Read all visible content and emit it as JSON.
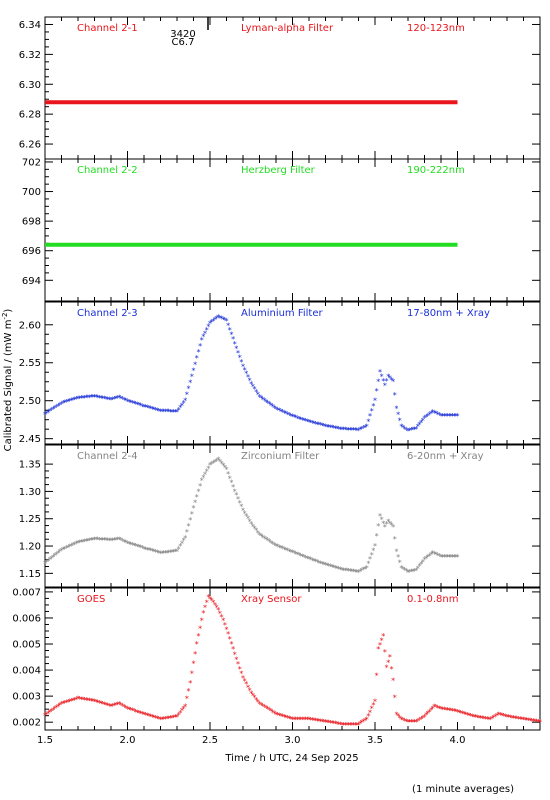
{
  "figure": {
    "ylabel_html": "Calibrated Signal / (mW m",
    "ylabel_sup": "-2",
    "ylabel_close": ")",
    "xlabel": "Time / h UTC, 24 Sep 2025",
    "footnote": "(1 minute averages)",
    "x_ticks": [
      "1.5",
      "2.0",
      "2.5",
      "3.0",
      "3.5",
      "4.0"
    ],
    "marker_annotation": [
      "3420",
      "C6.7"
    ]
  },
  "chart_data": [
    {
      "type": "scatter",
      "channel": "Channel 2-1",
      "filter": "Lyman-alpha Filter",
      "band": "120-123nm",
      "color": "#e8161c",
      "ylim": [
        6.25,
        6.345
      ],
      "yticks": [
        "6.26",
        "6.28",
        "6.30",
        "6.32",
        "6.34"
      ],
      "x_range": [
        1.5,
        4.0
      ],
      "series": [
        {
          "x": [
            1.5,
            4.0
          ],
          "y": [
            6.288,
            6.288
          ],
          "kind": "constant"
        }
      ]
    },
    {
      "type": "scatter",
      "channel": "Channel 2-2",
      "filter": "Herzberg Filter",
      "band": "190-222nm",
      "color": "#22dd22",
      "ylim": [
        692.6,
        702.2
      ],
      "yticks": [
        "694",
        "696",
        "698",
        "700",
        "702"
      ],
      "series": [
        {
          "x": [
            1.5,
            4.0
          ],
          "y": [
            696.4,
            696.4
          ],
          "kind": "constant"
        }
      ]
    },
    {
      "type": "scatter",
      "channel": "Channel 2-3",
      "filter": "Aluminium Filter",
      "band": "17-80nm + Xray",
      "color": "#1a2fd6",
      "ylim": [
        2.443,
        2.63
      ],
      "yticks": [
        "2.45",
        "2.50",
        "2.55",
        "2.60"
      ],
      "series": [
        {
          "x": [
            1.5,
            1.6,
            1.7,
            1.8,
            1.9,
            1.95,
            2.0,
            2.1,
            2.2,
            2.3,
            2.35,
            2.4,
            2.45,
            2.5,
            2.55,
            2.6,
            2.65,
            2.7,
            2.75,
            2.8,
            2.9,
            3.0,
            3.1,
            3.2,
            3.3,
            3.4,
            3.45,
            3.5,
            3.53,
            3.56,
            3.58,
            3.61,
            3.63,
            3.66,
            3.7,
            3.75,
            3.8,
            3.85,
            3.9,
            4.0
          ],
          "y": [
            2.482,
            2.496,
            2.503,
            2.505,
            2.501,
            2.504,
            2.499,
            2.492,
            2.486,
            2.485,
            2.5,
            2.54,
            2.58,
            2.602,
            2.61,
            2.605,
            2.575,
            2.545,
            2.522,
            2.505,
            2.489,
            2.479,
            2.472,
            2.466,
            2.462,
            2.461,
            2.466,
            2.5,
            2.538,
            2.52,
            2.532,
            2.525,
            2.49,
            2.466,
            2.46,
            2.463,
            2.477,
            2.485,
            2.48,
            2.48
          ]
        }
      ]
    },
    {
      "type": "scatter",
      "channel": "Channel 2-4",
      "filter": "Zirconium Filter",
      "band": "6-20nm + Xray",
      "color": "#848484",
      "ylim": [
        1.125,
        1.385
      ],
      "yticks": [
        "1.15",
        "1.20",
        "1.25",
        "1.30",
        "1.35"
      ],
      "series": [
        {
          "x": [
            1.5,
            1.6,
            1.7,
            1.8,
            1.9,
            1.95,
            2.0,
            2.1,
            2.2,
            2.3,
            2.35,
            2.4,
            2.45,
            2.5,
            2.55,
            2.6,
            2.65,
            2.7,
            2.75,
            2.8,
            2.9,
            3.0,
            3.1,
            3.2,
            3.3,
            3.4,
            3.45,
            3.5,
            3.53,
            3.56,
            3.58,
            3.61,
            3.63,
            3.66,
            3.7,
            3.75,
            3.8,
            3.85,
            3.9,
            4.0
          ],
          "y": [
            1.168,
            1.192,
            1.206,
            1.212,
            1.21,
            1.212,
            1.205,
            1.195,
            1.186,
            1.19,
            1.215,
            1.27,
            1.32,
            1.348,
            1.358,
            1.34,
            1.3,
            1.265,
            1.24,
            1.22,
            1.2,
            1.188,
            1.176,
            1.165,
            1.156,
            1.152,
            1.16,
            1.2,
            1.255,
            1.235,
            1.245,
            1.235,
            1.19,
            1.16,
            1.152,
            1.155,
            1.175,
            1.187,
            1.18,
            1.18
          ]
        }
      ]
    },
    {
      "type": "scatter",
      "channel": "GOES",
      "filter": "Xray Sensor",
      "band": "0.1-0.8nm",
      "color": "#e8161c",
      "ylim": [
        0.0017,
        0.00715
      ],
      "yticks": [
        "0.002",
        "0.003",
        "0.004",
        "0.005",
        "0.006",
        "0.007"
      ],
      "series": [
        {
          "x": [
            1.5,
            1.6,
            1.7,
            1.8,
            1.9,
            1.95,
            2.0,
            2.1,
            2.2,
            2.3,
            2.35,
            2.38,
            2.42,
            2.46,
            2.49,
            2.52,
            2.55,
            2.58,
            2.62,
            2.66,
            2.7,
            2.75,
            2.8,
            2.9,
            3.0,
            3.1,
            3.2,
            3.3,
            3.4,
            3.45,
            3.5,
            3.52,
            3.55,
            3.57,
            3.59,
            3.61,
            3.63,
            3.66,
            3.7,
            3.75,
            3.8,
            3.86,
            3.9,
            4.0,
            4.1,
            4.2,
            4.25,
            4.3,
            4.4,
            4.5
          ],
          "y": [
            0.00225,
            0.0027,
            0.0029,
            0.0028,
            0.0026,
            0.0027,
            0.0025,
            0.0023,
            0.0021,
            0.0022,
            0.0026,
            0.0035,
            0.005,
            0.0062,
            0.0068,
            0.0066,
            0.0063,
            0.0059,
            0.0052,
            0.0044,
            0.0037,
            0.0031,
            0.0027,
            0.0023,
            0.0021,
            0.0021,
            0.002,
            0.0019,
            0.0019,
            0.0021,
            0.0028,
            0.0048,
            0.0053,
            0.0041,
            0.0045,
            0.0036,
            0.0023,
            0.0021,
            0.002,
            0.002,
            0.0022,
            0.0026,
            0.0025,
            0.0024,
            0.0022,
            0.0021,
            0.0023,
            0.0022,
            0.0021,
            0.002
          ]
        }
      ]
    }
  ]
}
